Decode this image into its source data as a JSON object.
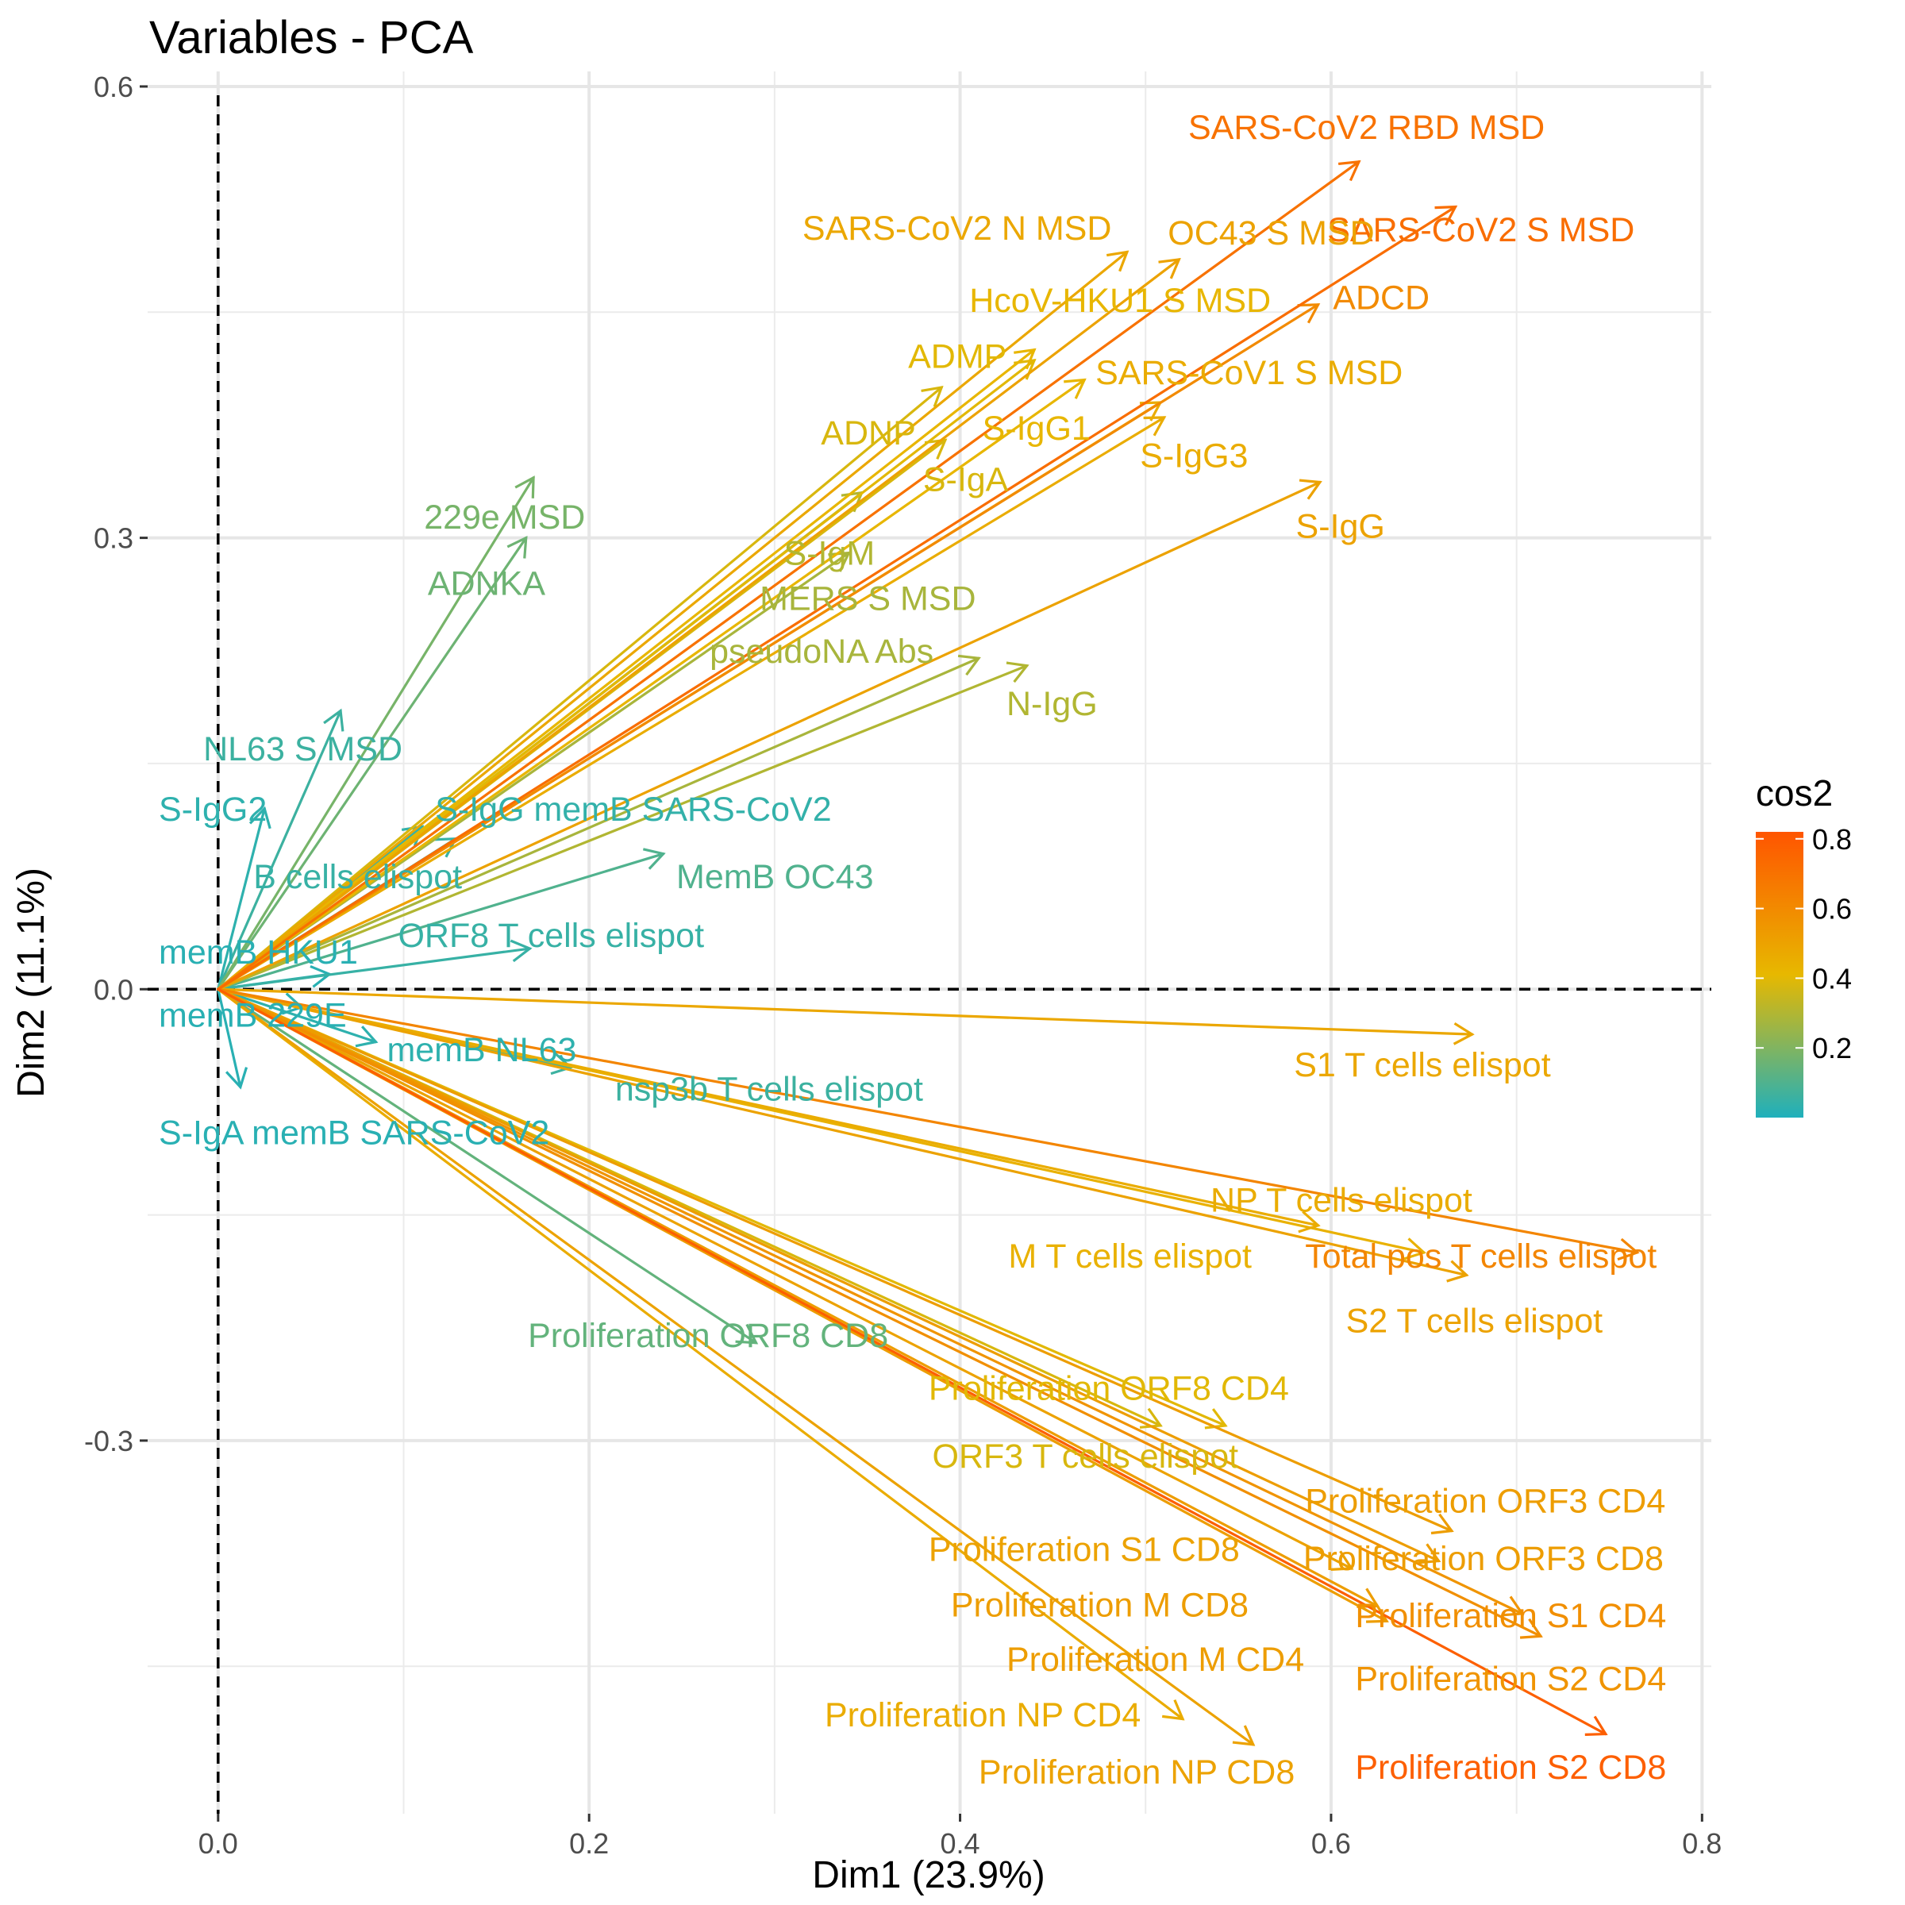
{
  "chart_data": {
    "type": "scatter",
    "title": "Variables - PCA",
    "xlabel": "Dim1 (23.9%)",
    "ylabel": "Dim2 (11.1%)",
    "xlim": [
      -0.038,
      0.805
    ],
    "ylim": [
      -0.548,
      0.61
    ],
    "xticks": [
      0.0,
      0.2,
      0.4,
      0.6,
      0.8
    ],
    "xtick_labels": [
      "0.0",
      "0.2",
      "0.4",
      "0.6",
      "0.8"
    ],
    "yticks": [
      -0.3,
      0.0,
      0.3,
      0.6
    ],
    "ytick_labels": [
      "-0.3",
      "0.0",
      "0.3",
      "0.6"
    ],
    "grid": true,
    "reference_lines": {
      "x": 0,
      "y": 0,
      "style": "dashed"
    },
    "color_by": "cos2",
    "legend": {
      "title": "cos2",
      "placement": "right",
      "range": [
        0.0,
        0.82
      ],
      "ticks": [
        0.2,
        0.4,
        0.6,
        0.8
      ],
      "tick_labels": [
        "0.2",
        "0.4",
        "0.6",
        "0.8"
      ],
      "colors": [
        "#1fb0bc",
        "#e7b800",
        "#ff5500"
      ]
    },
    "variables": [
      {
        "name": "SARS-CoV2 RBD MSD",
        "x": 0.615,
        "y": 0.55,
        "cos2": 0.7,
        "label_x": 0.523,
        "label_y": 0.573,
        "anchor": "start"
      },
      {
        "name": "SARS-CoV2 S MSD",
        "x": 0.667,
        "y": 0.52,
        "cos2": 0.72,
        "label_x": 0.598,
        "label_y": 0.505,
        "anchor": "start"
      },
      {
        "name": "SARS-CoV2 N MSD",
        "x": 0.49,
        "y": 0.49,
        "cos2": 0.48,
        "label_x": 0.315,
        "label_y": 0.506,
        "anchor": "start"
      },
      {
        "name": "OC43 S MSD",
        "x": 0.518,
        "y": 0.485,
        "cos2": 0.5,
        "label_x": 0.512,
        "label_y": 0.503,
        "anchor": "start"
      },
      {
        "name": "ADCD",
        "x": 0.593,
        "y": 0.455,
        "cos2": 0.6,
        "label_x": 0.601,
        "label_y": 0.46,
        "anchor": "start"
      },
      {
        "name": "HcoV-HKU1 S MSD",
        "x": 0.44,
        "y": 0.425,
        "cos2": 0.42,
        "label_x": 0.405,
        "label_y": 0.458,
        "anchor": "start"
      },
      {
        "name": "ADMP",
        "x": 0.44,
        "y": 0.418,
        "cos2": 0.4,
        "label_x": 0.372,
        "label_y": 0.421,
        "anchor": "start"
      },
      {
        "name": "SARS-CoV1 S MSD",
        "x": 0.508,
        "y": 0.39,
        "cos2": 0.46,
        "label_x": 0.473,
        "label_y": 0.41,
        "anchor": "start"
      },
      {
        "name": "S-IgG1",
        "x": 0.467,
        "y": 0.405,
        "cos2": 0.42,
        "label_x": 0.412,
        "label_y": 0.373,
        "anchor": "start"
      },
      {
        "name": "ADNP",
        "x": 0.39,
        "y": 0.4,
        "cos2": 0.38,
        "label_x": 0.325,
        "label_y": 0.37,
        "anchor": "start"
      },
      {
        "name": "S-IgG3",
        "x": 0.51,
        "y": 0.38,
        "cos2": 0.46,
        "label_x": 0.497,
        "label_y": 0.355,
        "anchor": "start"
      },
      {
        "name": "S-IgA",
        "x": 0.392,
        "y": 0.365,
        "cos2": 0.38,
        "label_x": 0.38,
        "label_y": 0.339,
        "anchor": "start"
      },
      {
        "name": "S-IgG",
        "x": 0.594,
        "y": 0.337,
        "cos2": 0.5,
        "label_x": 0.581,
        "label_y": 0.308,
        "anchor": "start"
      },
      {
        "name": "229e MSD",
        "x": 0.17,
        "y": 0.34,
        "cos2": 0.18,
        "label_x": 0.111,
        "label_y": 0.314,
        "anchor": "start"
      },
      {
        "name": "S-IgM",
        "x": 0.347,
        "y": 0.33,
        "cos2": 0.3,
        "label_x": 0.305,
        "label_y": 0.29,
        "anchor": "start"
      },
      {
        "name": "ADNKA",
        "x": 0.166,
        "y": 0.3,
        "cos2": 0.16,
        "label_x": 0.113,
        "label_y": 0.27,
        "anchor": "start"
      },
      {
        "name": "MERS S MSD",
        "x": 0.34,
        "y": 0.29,
        "cos2": 0.28,
        "label_x": 0.292,
        "label_y": 0.26,
        "anchor": "start"
      },
      {
        "name": "pseudoNA Abs",
        "x": 0.41,
        "y": 0.22,
        "cos2": 0.28,
        "label_x": 0.265,
        "label_y": 0.225,
        "anchor": "start"
      },
      {
        "name": "N-IgG",
        "x": 0.436,
        "y": 0.215,
        "cos2": 0.3,
        "label_x": 0.425,
        "label_y": 0.19,
        "anchor": "start"
      },
      {
        "name": "NL63 S MSD",
        "x": 0.066,
        "y": 0.185,
        "cos2": 0.06,
        "label_x": -0.008,
        "label_y": 0.16,
        "anchor": "start"
      },
      {
        "name": "S-IgG2",
        "x": 0.025,
        "y": 0.12,
        "cos2": 0.03,
        "label_x": -0.032,
        "label_y": 0.12,
        "anchor": "start"
      },
      {
        "name": "S-IgG memB SARS-CoV2",
        "x": 0.11,
        "y": 0.108,
        "cos2": 0.04,
        "label_x": 0.117,
        "label_y": 0.12,
        "anchor": "start"
      },
      {
        "name": "B cells elispot",
        "x": 0.128,
        "y": 0.1,
        "cos2": 0.05,
        "label_x": 0.019,
        "label_y": 0.075,
        "anchor": "start"
      },
      {
        "name": "MemB OC43",
        "x": 0.24,
        "y": 0.09,
        "cos2": 0.1,
        "label_x": 0.247,
        "label_y": 0.075,
        "anchor": "start"
      },
      {
        "name": "ORF8 T cells elispot",
        "x": 0.168,
        "y": 0.027,
        "cos2": 0.05,
        "label_x": 0.097,
        "label_y": 0.036,
        "anchor": "start"
      },
      {
        "name": "memB HKU1",
        "x": 0.06,
        "y": 0.01,
        "cos2": 0.02,
        "label_x": -0.032,
        "label_y": 0.025,
        "anchor": "start"
      },
      {
        "name": "memB 229E",
        "x": 0.045,
        "y": -0.012,
        "cos2": 0.02,
        "label_x": -0.032,
        "label_y": -0.017,
        "anchor": "start"
      },
      {
        "name": "memB NL63",
        "x": 0.085,
        "y": -0.035,
        "cos2": 0.03,
        "label_x": 0.091,
        "label_y": -0.04,
        "anchor": "start"
      },
      {
        "name": "nsp3b T cells elispot",
        "x": 0.19,
        "y": -0.052,
        "cos2": 0.06,
        "label_x": 0.214,
        "label_y": -0.066,
        "anchor": "start"
      },
      {
        "name": "S-IgA memB SARS-CoV2",
        "x": 0.012,
        "y": -0.065,
        "cos2": 0.02,
        "label_x": -0.032,
        "label_y": -0.095,
        "anchor": "start"
      },
      {
        "name": "S1 T cells elispot",
        "x": 0.676,
        "y": -0.03,
        "cos2": 0.48,
        "label_x": 0.58,
        "label_y": -0.05,
        "anchor": "start"
      },
      {
        "name": "NP T cells elispot",
        "x": 0.593,
        "y": -0.157,
        "cos2": 0.46,
        "label_x": 0.535,
        "label_y": -0.14,
        "anchor": "start"
      },
      {
        "name": "Total pos T cells elispot",
        "x": 0.765,
        "y": -0.175,
        "cos2": 0.62,
        "label_x": 0.586,
        "label_y": -0.177,
        "anchor": "start"
      },
      {
        "name": "M T cells elispot",
        "x": 0.65,
        "y": -0.175,
        "cos2": 0.44,
        "label_x": 0.426,
        "label_y": -0.177,
        "anchor": "start"
      },
      {
        "name": "S2 T cells elispot",
        "x": 0.673,
        "y": -0.19,
        "cos2": 0.5,
        "label_x": 0.608,
        "label_y": -0.22,
        "anchor": "start"
      },
      {
        "name": "Proliferation ORF8 CD8",
        "x": 0.29,
        "y": -0.235,
        "cos2": 0.14,
        "label_x": 0.167,
        "label_y": -0.23,
        "anchor": "start"
      },
      {
        "name": "Proliferation ORF8 CD4",
        "x": 0.543,
        "y": -0.29,
        "cos2": 0.4,
        "label_x": 0.383,
        "label_y": -0.265,
        "anchor": "start"
      },
      {
        "name": "ORF3 T cells elispot",
        "x": 0.508,
        "y": -0.29,
        "cos2": 0.38,
        "label_x": 0.385,
        "label_y": -0.31,
        "anchor": "start"
      },
      {
        "name": "Proliferation ORF3 CD4",
        "x": 0.665,
        "y": -0.36,
        "cos2": 0.52,
        "label_x": 0.586,
        "label_y": -0.34,
        "anchor": "start"
      },
      {
        "name": "Proliferation ORF3 CD8",
        "x": 0.658,
        "y": -0.38,
        "cos2": 0.52,
        "label_x": 0.585,
        "label_y": -0.378,
        "anchor": "start"
      },
      {
        "name": "Proliferation S1 CD8",
        "x": 0.611,
        "y": -0.385,
        "cos2": 0.5,
        "label_x": 0.383,
        "label_y": -0.372,
        "anchor": "start"
      },
      {
        "name": "Proliferation M CD8",
        "x": 0.625,
        "y": -0.41,
        "cos2": 0.52,
        "label_x": 0.395,
        "label_y": -0.409,
        "anchor": "start"
      },
      {
        "name": "Proliferation S1 CD4",
        "x": 0.713,
        "y": -0.43,
        "cos2": 0.58,
        "label_x": 0.613,
        "label_y": -0.416,
        "anchor": "start"
      },
      {
        "name": "Proliferation M CD4",
        "x": 0.63,
        "y": -0.42,
        "cos2": 0.52,
        "label_x": 0.425,
        "label_y": -0.445,
        "anchor": "start"
      },
      {
        "name": "Proliferation S2 CD4",
        "x": 0.703,
        "y": -0.415,
        "cos2": 0.56,
        "label_x": 0.613,
        "label_y": -0.458,
        "anchor": "start"
      },
      {
        "name": "Proliferation NP CD4",
        "x": 0.52,
        "y": -0.485,
        "cos2": 0.46,
        "label_x": 0.327,
        "label_y": -0.482,
        "anchor": "start"
      },
      {
        "name": "Proliferation NP CD8",
        "x": 0.558,
        "y": -0.502,
        "cos2": 0.5,
        "label_x": 0.41,
        "label_y": -0.52,
        "anchor": "start"
      },
      {
        "name": "Proliferation S2 CD8",
        "x": 0.748,
        "y": -0.495,
        "cos2": 0.78,
        "label_x": 0.613,
        "label_y": -0.517,
        "anchor": "start"
      }
    ]
  }
}
